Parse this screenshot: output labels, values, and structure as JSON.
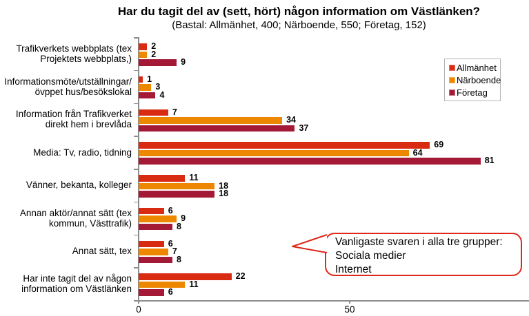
{
  "title": "Har du tagit del av (sett, hört) någon information om Västlänken?",
  "subtitle": "(Bastal: Allmänhet, 400; Närboende, 550; Företag, 152)",
  "legend": {
    "items": [
      {
        "label": "Allmänhet",
        "color": "#d92b12"
      },
      {
        "label": "Närboende",
        "color": "#ee8700"
      },
      {
        "label": "Företag",
        "color": "#a31936"
      }
    ]
  },
  "callout": {
    "text": "Vanligaste svaren i alla tre grupper:\nSociala medier\nInternet",
    "border_color": "#dd281a"
  },
  "colors": {
    "axis": "#8c8c8c"
  },
  "chart_data": {
    "type": "bar",
    "orientation": "horizontal",
    "title": "Har du tagit del av (sett, hört) någon information om Västlänken?",
    "subtitle": "(Bastal: Allmänhet, 400; Närboende, 550; Företag, 152)",
    "categories": [
      "Trafikverkets webbplats (tex\nProjektets webbplats,)",
      "Informationsmöte/utställningar/\növppet hus/besökslokal",
      "Information från Trafikverket\ndirekt hem i brevlåda",
      "Media: Tv, radio, tidning",
      "Vänner, bekanta, kolleger",
      "Annan aktör/annat sätt (tex\nkommun, Västtrafik)",
      "Annat sätt, tex",
      "Har inte tagit del av någon\ninformation om Västlänken"
    ],
    "series": [
      {
        "name": "Allmänhet",
        "color": "#d92b12",
        "values": [
          2,
          1,
          7,
          69,
          11,
          6,
          6,
          22
        ]
      },
      {
        "name": "Närboende",
        "color": "#ee8700",
        "values": [
          2,
          3,
          34,
          64,
          18,
          9,
          7,
          11
        ]
      },
      {
        "name": "Företag",
        "color": "#a31936",
        "values": [
          9,
          4,
          37,
          81,
          18,
          8,
          8,
          6
        ]
      }
    ],
    "xlabel": "",
    "ylabel": "",
    "x_ticks": [
      0,
      50
    ],
    "xlim": [
      0,
      92
    ],
    "grid": false,
    "legend_position": "right",
    "value_labels": true
  }
}
